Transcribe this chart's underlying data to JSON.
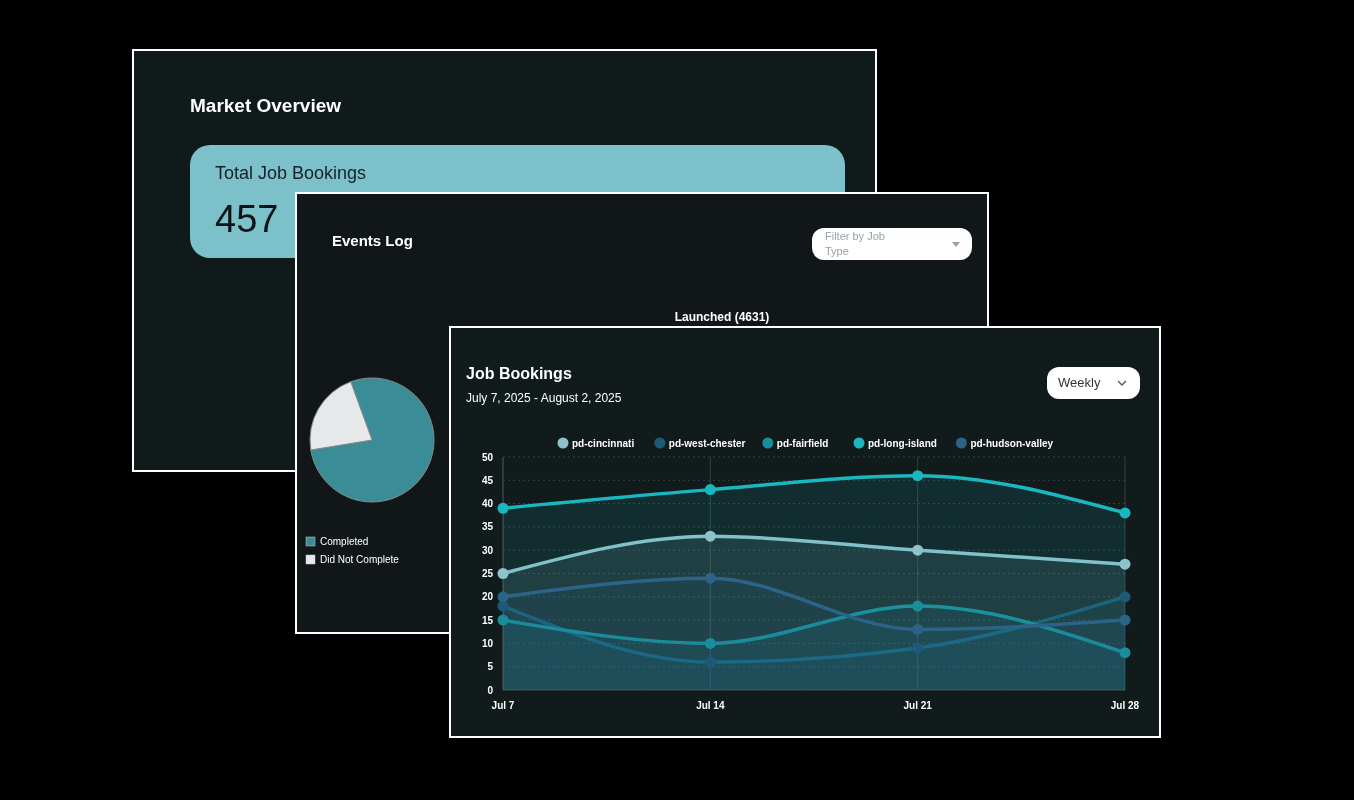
{
  "chart_data": [
    {
      "type": "other",
      "title": "Market Overview",
      "annotations": [
        "Total Job Bookings",
        "457"
      ]
    },
    {
      "type": "pie",
      "title": "Events Log",
      "categories": [
        "Completed",
        "Did Not Complete"
      ],
      "values": [
        78,
        22
      ],
      "colors": [
        "#3a8d96",
        "#e6e8ea"
      ],
      "legend": "bottom left",
      "annotations": [
        "Filter by Job Type",
        "Launched (4631)"
      ]
    },
    {
      "type": "area",
      "title": "Job Bookings",
      "subtitle": "July 7, 2025 - August 2, 2025",
      "categories": [
        "Jul 7",
        "Jul 14",
        "Jul 21",
        "Jul 28"
      ],
      "ylim": [
        0,
        50
      ],
      "yticks": [
        0,
        5,
        10,
        15,
        20,
        25,
        30,
        35,
        40,
        45,
        50
      ],
      "grid": true,
      "legend": "top",
      "marker": "circle",
      "annotations": [
        "Weekly"
      ],
      "series": [
        {
          "name": "pd-cincinnati",
          "color": "#8fc3cc",
          "values": [
            25,
            33,
            30,
            27
          ]
        },
        {
          "name": "pd-west-chester",
          "color": "#1c5a78",
          "values": [
            18,
            6,
            9,
            20
          ]
        },
        {
          "name": "pd-fairfield",
          "color": "#1a8d9a",
          "values": [
            15,
            10,
            18,
            8
          ]
        },
        {
          "name": "pd-long-island",
          "color": "#19b8c0",
          "values": [
            39,
            43,
            46,
            38
          ]
        },
        {
          "name": "pd-hudson-valley",
          "color": "#2c6488",
          "values": [
            20,
            24,
            13,
            15
          ]
        }
      ]
    }
  ]
}
